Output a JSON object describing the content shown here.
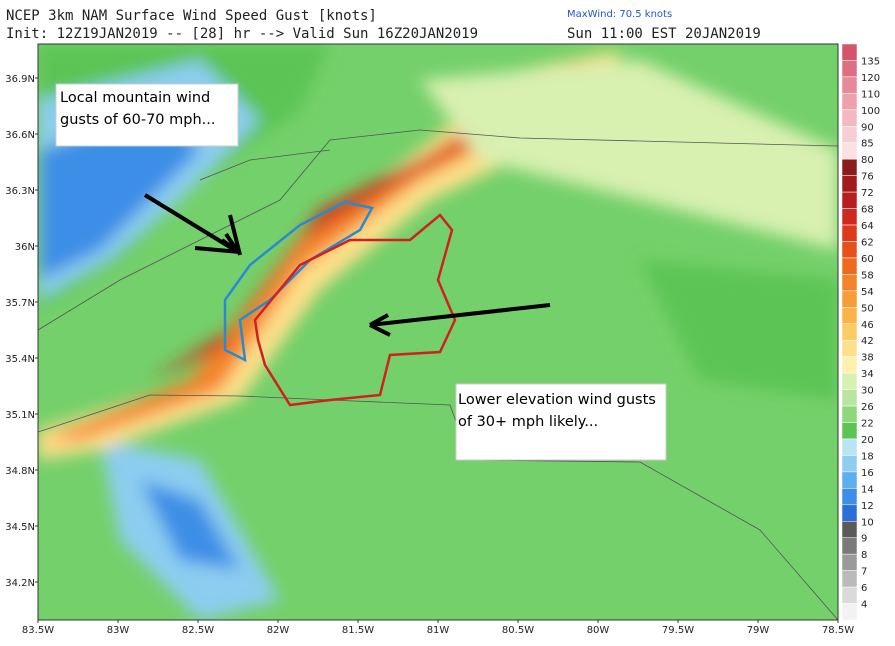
{
  "header": {
    "title": "NCEP 3km NAM Surface Wind Speed Gust [knots]",
    "init": "Init: 12Z19JAN2019 -- [28] hr --> Valid Sun 16Z20JAN2019",
    "maxwind": "MaxWind: 70.5 knots",
    "valid_local": "Sun 11:00 EST 20JAN2019"
  },
  "lat_labels": [
    "36.9N",
    "36.6N",
    "36.3N",
    "36N",
    "35.7N",
    "35.4N",
    "35.1N",
    "34.8N",
    "34.5N",
    "34.2N"
  ],
  "lon_labels": [
    "83.5W",
    "83W",
    "82.5W",
    "82W",
    "81.5W",
    "81W",
    "80.5W",
    "80W",
    "79.5W",
    "79W",
    "78.5W"
  ],
  "colorbar": {
    "labels": [
      135,
      120,
      110,
      100,
      90,
      85,
      80,
      76,
      72,
      68,
      64,
      62,
      60,
      58,
      54,
      50,
      46,
      42,
      38,
      34,
      30,
      26,
      22,
      20,
      18,
      16,
      14,
      12,
      10,
      9,
      8,
      7,
      6,
      4
    ],
    "colors": [
      "#d4556a",
      "#de6f82",
      "#e6899a",
      "#eda1ae",
      "#f2b9c2",
      "#f6cfd5",
      "#f9e1e4",
      "#8a1c1c",
      "#a01c1c",
      "#b81e1e",
      "#cc2a1e",
      "#dc3a1a",
      "#e8501a",
      "#f06a1e",
      "#f5832a",
      "#f89c38",
      "#fbb44c",
      "#fccb66",
      "#fde08a",
      "#fdf0b0",
      "#d8f0b0",
      "#b8e6a0",
      "#8cd87a",
      "#5cc454",
      "#b8e4f4",
      "#8ccdf0",
      "#5eaef0",
      "#3c8ee6",
      "#2a6fd8",
      "#5a5a5a",
      "#7a7a7a",
      "#9a9a9a",
      "#bababa",
      "#dadada",
      "#f2f2f2"
    ]
  },
  "annotations": {
    "mountain": [
      "Local mountain wind",
      "gusts of 60-70 mph..."
    ],
    "lowland": [
      "Lower elevation wind gusts",
      "of 30+ mph likely..."
    ]
  }
}
